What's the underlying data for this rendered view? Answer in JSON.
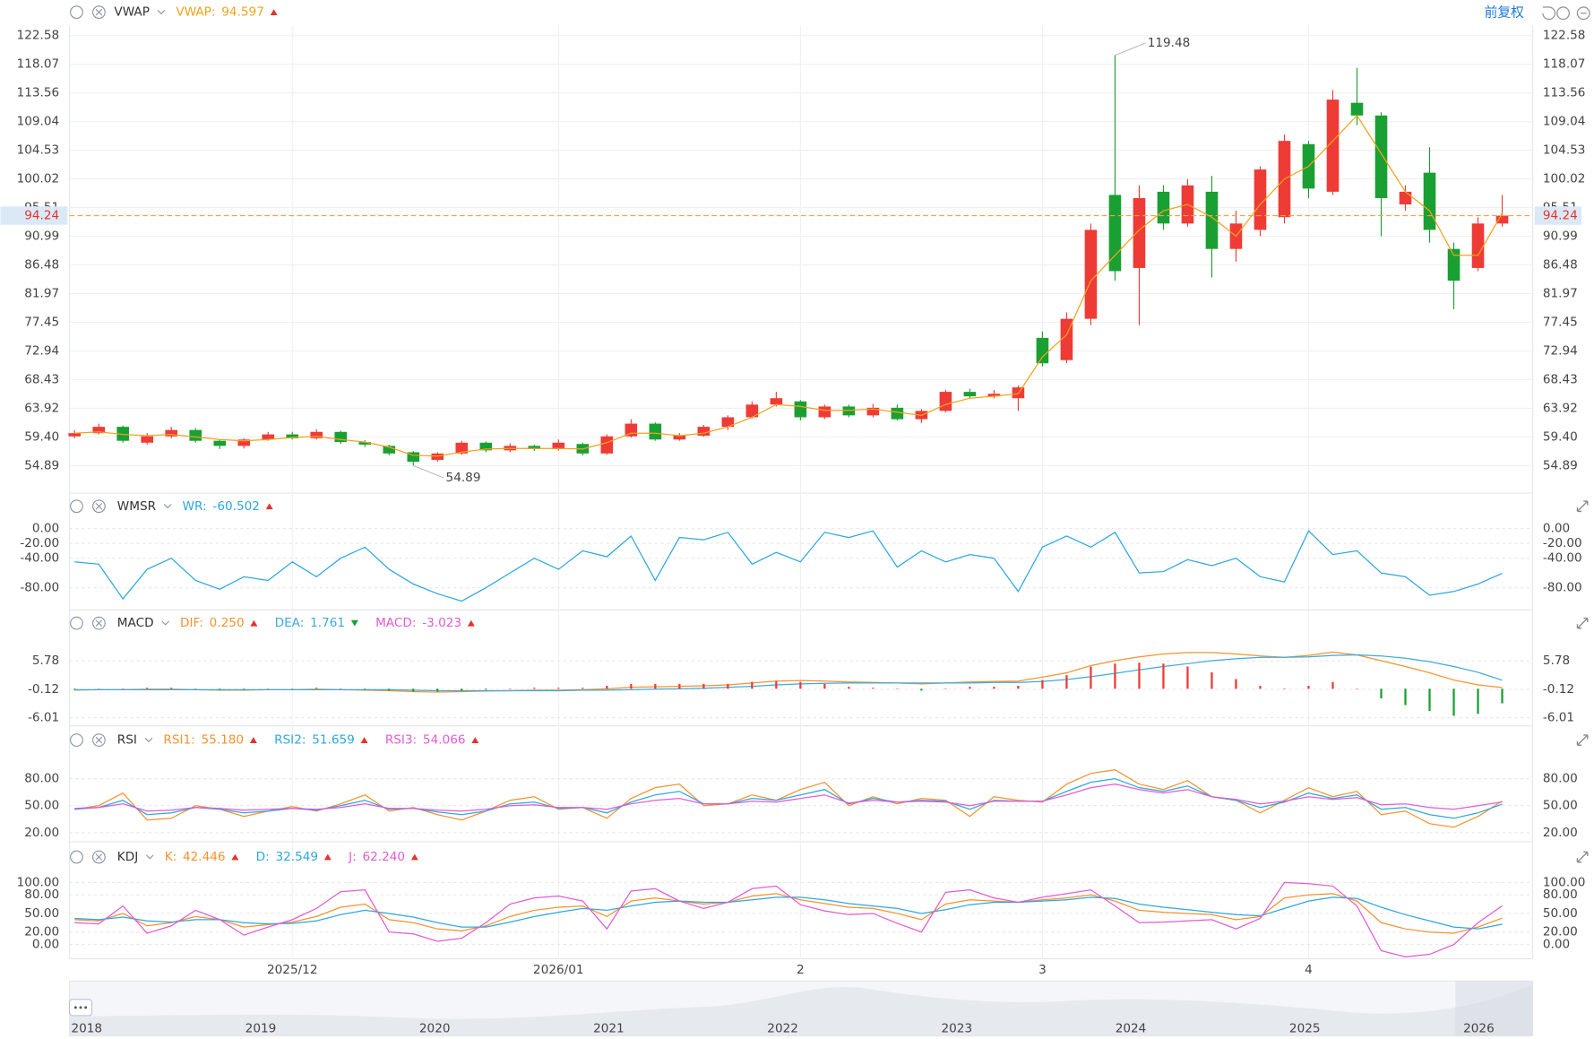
{
  "chart_data": [
    {
      "type": "candlestick",
      "title": "VWAP",
      "categories": [
        null,
        null,
        null,
        null,
        null,
        null,
        null,
        null,
        null,
        "2025/12",
        null,
        null,
        null,
        null,
        null,
        null,
        null,
        null,
        null,
        null,
        "2026/01",
        null,
        null,
        null,
        null,
        null,
        null,
        null,
        null,
        null,
        "2",
        null,
        null,
        null,
        null,
        null,
        null,
        null,
        null,
        null,
        "3",
        null,
        null,
        null,
        null,
        null,
        null,
        null,
        null,
        null,
        null,
        "4",
        null,
        null,
        null,
        null,
        null,
        null,
        null,
        null
      ],
      "open": [
        59.5,
        60,
        61,
        58.5,
        59.5,
        60.5,
        58.8,
        58,
        59,
        59.8,
        59.2,
        60.2,
        58.6,
        58,
        57,
        55.8,
        56.8,
        58.5,
        57.3,
        58,
        57.5,
        58.3,
        56.8,
        59.5,
        61.5,
        59,
        59.6,
        61,
        62.5,
        64.5,
        65,
        62.5,
        64.2,
        62.8,
        64,
        62.2,
        63.5,
        66.5,
        65.8,
        65.5,
        75,
        71.5,
        78,
        97.5,
        86,
        98,
        93,
        98,
        89,
        92,
        94,
        105.5,
        98,
        112,
        110,
        96,
        101,
        89,
        86,
        93
      ],
      "high": [
        60.5,
        61.5,
        61.2,
        60,
        61,
        60.8,
        59,
        59.2,
        60.2,
        60.2,
        60.6,
        60.4,
        58.9,
        58.2,
        57.2,
        57,
        58.8,
        58.7,
        58.4,
        58.2,
        59,
        58.5,
        59.8,
        62.2,
        61.7,
        60,
        61.3,
        62.8,
        65,
        66.5,
        65.2,
        64.5,
        64.5,
        64.6,
        64.5,
        63.8,
        66.8,
        67,
        66.8,
        67.5,
        76,
        79,
        93,
        119.48,
        99,
        99,
        100,
        100.5,
        95,
        102,
        107,
        106,
        114,
        117.5,
        110.5,
        99,
        105,
        90,
        94,
        97.5
      ],
      "low": [
        59.2,
        59.8,
        58.5,
        58.2,
        59.2,
        58.5,
        57.5,
        57.6,
        58.8,
        59,
        59,
        58.3,
        57.8,
        56.5,
        54.89,
        55.5,
        56.6,
        57,
        57,
        57.2,
        57.3,
        56.5,
        56.6,
        59.3,
        58.8,
        58.8,
        59.4,
        60.5,
        62.3,
        64.2,
        62,
        62.2,
        62.5,
        62.5,
        62,
        61.6,
        63.3,
        65.5,
        65.5,
        63.5,
        70.5,
        71,
        77,
        84,
        77,
        92,
        92.5,
        84.5,
        87,
        91,
        93,
        97,
        97.5,
        108.5,
        91,
        95,
        90,
        79.5,
        85.5,
        92.5
      ],
      "close": [
        60,
        61,
        58.8,
        59.5,
        60.5,
        58.8,
        58,
        59,
        59.8,
        59.2,
        60.2,
        58.6,
        58.2,
        56.8,
        55.5,
        56.8,
        58.5,
        57.3,
        58,
        57.5,
        58.5,
        56.8,
        59.5,
        61.5,
        59,
        59.6,
        61,
        62.5,
        64.5,
        65.5,
        62.5,
        64.2,
        62.8,
        64,
        62.2,
        63.5,
        66.5,
        65.8,
        66.2,
        67.2,
        71,
        78,
        92,
        85.5,
        97,
        93,
        99,
        89,
        93,
        101.5,
        106,
        98.5,
        112.5,
        110,
        97,
        98,
        92,
        84,
        93,
        94.24
      ],
      "up_color": "#ee3b36",
      "down_color": "#1a9f33",
      "series": [
        {
          "name": "VWAP:",
          "readout": "94.597",
          "trend": "up",
          "color": "#f0a21c",
          "values": [
            60,
            60.2,
            59.8,
            59.6,
            59.8,
            59.4,
            59,
            58.8,
            59,
            59.3,
            59.5,
            59,
            58.6,
            57.8,
            56.5,
            56.4,
            57,
            57.5,
            57.6,
            57.6,
            57.6,
            57.5,
            58.5,
            60,
            60,
            59.6,
            60,
            61,
            62.5,
            64.5,
            64.2,
            63.6,
            63.6,
            63.8,
            63.3,
            62.8,
            64.5,
            65.5,
            65.8,
            66.2,
            72,
            75.5,
            84,
            88,
            92,
            95,
            96,
            94,
            91,
            96,
            100,
            102,
            106,
            110,
            104,
            98,
            95,
            88,
            88,
            94.6
          ]
        }
      ],
      "last_price": {
        "value": 94.24,
        "label": "94.24",
        "color": "#f5a04a"
      },
      "annotations": [
        {
          "value": 119.48
        },
        {
          "value": 54.89
        }
      ],
      "ylim": [
        50.57,
        124.18
      ],
      "yticks": [
        122.58,
        118.07,
        113.56,
        109.04,
        104.53,
        100.02,
        95.51,
        90.99,
        86.48,
        81.97,
        77.45,
        72.94,
        68.43,
        63.92,
        {
          "value": 59.4,
          "label": "59.40"
        },
        54.89
      ],
      "grid": true
    },
    {
      "type": "line",
      "title": "WMSR",
      "series": [
        {
          "name": "WR:",
          "readout": "-60.502",
          "trend": "up",
          "color": "#2ea7e0",
          "values": [
            -45,
            -48,
            -95,
            -55,
            -40,
            -70,
            -82,
            -65,
            -70,
            -45,
            -65,
            -40,
            -25,
            -55,
            -75,
            -88,
            -98,
            -80,
            -60,
            -40,
            -55,
            -30,
            -38,
            -10,
            -70,
            -12,
            -15,
            -5,
            -48,
            -32,
            -45,
            -5,
            -12,
            -3,
            -52,
            -30,
            -45,
            -35,
            -40,
            -85,
            -25,
            -10,
            -25,
            -5,
            -60,
            -58,
            -42,
            -50,
            -40,
            -65,
            -72,
            -3,
            -35,
            -30,
            -60,
            -65,
            -90,
            -85,
            -75,
            -60.5
          ]
        }
      ],
      "ylim": [
        -110,
        11
      ],
      "yticks": [
        {
          "value": 0,
          "label": "0.00"
        },
        {
          "value": -20,
          "label": "-20.00"
        },
        {
          "value": -40,
          "label": "-40.00"
        },
        {
          "value": -80,
          "label": "-80.00"
        }
      ],
      "grid": true
    },
    {
      "type": "macd",
      "title": "MACD",
      "series": [
        {
          "name": "DIF:",
          "readout": "0.250",
          "trend": "up",
          "color": "#f5922f",
          "kind": "line",
          "values": [
            -0.3,
            -0.2,
            -0.2,
            -0.1,
            -0.1,
            -0.2,
            -0.3,
            -0.3,
            -0.2,
            -0.2,
            -0.1,
            -0.2,
            -0.3,
            -0.4,
            -0.6,
            -0.7,
            -0.6,
            -0.5,
            -0.4,
            -0.3,
            -0.3,
            -0.2,
            0.0,
            0.3,
            0.4,
            0.5,
            0.6,
            0.8,
            1.2,
            1.6,
            1.7,
            1.6,
            1.4,
            1.3,
            1.2,
            1.0,
            1.2,
            1.4,
            1.5,
            1.6,
            2.4,
            3.3,
            4.8,
            5.8,
            6.6,
            7.2,
            7.5,
            7.5,
            7.2,
            6.8,
            6.5,
            6.9,
            7.6,
            7.0,
            5.8,
            4.6,
            3.3,
            1.8,
            0.8,
            0.25
          ]
        },
        {
          "name": "DEA:",
          "readout": "1.761",
          "trend": "down",
          "color": "#3eaadc",
          "kind": "line",
          "values": [
            -0.2,
            -0.2,
            -0.2,
            -0.2,
            -0.2,
            -0.2,
            -0.2,
            -0.2,
            -0.2,
            -0.2,
            -0.2,
            -0.2,
            -0.2,
            -0.2,
            -0.3,
            -0.4,
            -0.4,
            -0.4,
            -0.4,
            -0.4,
            -0.4,
            -0.3,
            -0.3,
            -0.2,
            -0.1,
            0.0,
            0.1,
            0.3,
            0.5,
            0.8,
            1.0,
            1.1,
            1.2,
            1.2,
            1.2,
            1.2,
            1.2,
            1.2,
            1.3,
            1.3,
            1.5,
            1.9,
            2.5,
            3.2,
            3.9,
            4.6,
            5.2,
            5.8,
            6.2,
            6.5,
            6.5,
            6.6,
            6.9,
            7.0,
            6.8,
            6.3,
            5.6,
            4.6,
            3.4,
            1.761
          ]
        },
        {
          "name": "MACD:",
          "readout": "-3.023",
          "trend": "up",
          "color": "#e35ad6",
          "kind": "bar",
          "values": [
            -0.2,
            0,
            0,
            0.2,
            0.2,
            0,
            -0.2,
            -0.2,
            0,
            0,
            0.2,
            0,
            -0.2,
            -0.4,
            -0.6,
            -0.6,
            -0.4,
            -0.2,
            0,
            0.2,
            0.2,
            0.2,
            0.6,
            1.0,
            1.0,
            1.0,
            1.0,
            1.0,
            1.4,
            1.6,
            1.4,
            1.0,
            0.4,
            0.2,
            0,
            -0.4,
            0,
            0.4,
            0.4,
            0.6,
            1.8,
            2.8,
            4.6,
            5.2,
            5.4,
            5.2,
            4.6,
            3.4,
            2.0,
            0.6,
            0,
            0.6,
            1.4,
            0,
            -2.0,
            -3.4,
            -4.6,
            -5.6,
            -5.2,
            -3.023
          ]
        }
      ],
      "up_color": "#ee3b36",
      "down_color": "#1a9f33",
      "ylim": [
        -7.69,
        10.41
      ],
      "yticks": [
        5.78,
        -0.12,
        -6.01
      ],
      "grid": true
    },
    {
      "type": "line",
      "title": "RSI",
      "series": [
        {
          "name": "RSI1:",
          "readout": "55.180",
          "trend": "up",
          "color": "#f5922f",
          "values": [
            46,
            50,
            64,
            34,
            36,
            50,
            46,
            38,
            44,
            49,
            44,
            52,
            62,
            44,
            48,
            40,
            34,
            44,
            56,
            60,
            46,
            48,
            36,
            58,
            70,
            74,
            50,
            52,
            62,
            56,
            68,
            76,
            50,
            60,
            52,
            58,
            56,
            38,
            60,
            56,
            54,
            74,
            86,
            90,
            74,
            68,
            78,
            60,
            56,
            42,
            56,
            70,
            60,
            66,
            40,
            44,
            30,
            26,
            38,
            55.18
          ]
        },
        {
          "name": "RSI2:",
          "readout": "51.659",
          "trend": "up",
          "color": "#2ea7e0",
          "values": [
            46,
            48,
            56,
            40,
            42,
            48,
            46,
            42,
            44,
            47,
            45,
            50,
            56,
            46,
            47,
            43,
            40,
            44,
            52,
            54,
            47,
            48,
            42,
            54,
            62,
            66,
            52,
            52,
            58,
            56,
            62,
            68,
            52,
            58,
            54,
            56,
            55,
            46,
            56,
            55,
            55,
            66,
            76,
            80,
            70,
            66,
            72,
            60,
            56,
            48,
            54,
            64,
            58,
            62,
            46,
            48,
            40,
            36,
            42,
            51.659
          ]
        },
        {
          "name": "RSI3:",
          "readout": "54.066",
          "trend": "up",
          "color": "#e35ad6",
          "values": [
            47,
            48,
            52,
            44,
            45,
            48,
            47,
            45,
            46,
            47,
            46,
            48,
            52,
            47,
            47,
            45,
            44,
            46,
            50,
            51,
            48,
            48,
            46,
            52,
            56,
            58,
            52,
            52,
            55,
            54,
            58,
            62,
            53,
            56,
            54,
            55,
            54,
            50,
            55,
            55,
            55,
            62,
            70,
            74,
            68,
            64,
            68,
            60,
            57,
            52,
            55,
            60,
            57,
            59,
            51,
            52,
            48,
            46,
            50,
            54.066
          ]
        }
      ],
      "ylim": [
        9.8,
        107.2
      ],
      "yticks": [
        {
          "value": 80,
          "label": "80.00"
        },
        {
          "value": 50,
          "label": "50.00"
        },
        {
          "value": 20,
          "label": "20.00"
        }
      ],
      "grid": true
    },
    {
      "type": "line",
      "title": "KDJ",
      "series": [
        {
          "name": "K:",
          "readout": "42.446",
          "trend": "up",
          "color": "#f5922f",
          "values": [
            40,
            38,
            50,
            30,
            35,
            45,
            40,
            28,
            32,
            36,
            45,
            60,
            65,
            40,
            35,
            25,
            22,
            30,
            45,
            55,
            60,
            62,
            45,
            70,
            75,
            70,
            65,
            68,
            78,
            82,
            72,
            66,
            60,
            58,
            50,
            40,
            65,
            72,
            70,
            68,
            72,
            75,
            80,
            70,
            55,
            52,
            50,
            48,
            40,
            45,
            75,
            80,
            82,
            70,
            35,
            25,
            20,
            18,
            28,
            42.446
          ]
        },
        {
          "name": "D:",
          "readout": "32.549",
          "trend": "up",
          "color": "#2ea7e0",
          "values": [
            42,
            40,
            44,
            38,
            36,
            40,
            40,
            35,
            33,
            34,
            38,
            48,
            55,
            50,
            44,
            35,
            28,
            28,
            36,
            45,
            52,
            58,
            55,
            62,
            68,
            70,
            68,
            68,
            72,
            76,
            76,
            72,
            66,
            62,
            58,
            50,
            56,
            64,
            68,
            68,
            70,
            72,
            76,
            74,
            65,
            60,
            56,
            52,
            48,
            46,
            58,
            70,
            76,
            74,
            60,
            48,
            38,
            28,
            25,
            32.549
          ]
        },
        {
          "name": "J:",
          "readout": "62.240",
          "trend": "up",
          "color": "#e35ad6",
          "values": [
            35,
            33,
            62,
            18,
            30,
            55,
            40,
            15,
            28,
            40,
            58,
            85,
            88,
            20,
            17,
            5,
            10,
            35,
            65,
            75,
            78,
            70,
            25,
            86,
            90,
            70,
            58,
            68,
            90,
            94,
            64,
            54,
            48,
            50,
            34,
            20,
            84,
            88,
            75,
            68,
            76,
            82,
            88,
            62,
            35,
            36,
            38,
            40,
            25,
            42,
            100,
            98,
            94,
            62,
            -10,
            -20,
            -16,
            0,
            35,
            62.24
          ]
        }
      ],
      "ylim": [
        -23,
        118
      ],
      "yticks": [
        {
          "value": 100,
          "label": "100.00"
        },
        {
          "value": 80,
          "label": "80.00"
        },
        {
          "value": 50,
          "label": "50.00"
        },
        {
          "value": 20,
          "label": "20.00"
        },
        {
          "value": 0,
          "label": "0.00"
        }
      ],
      "grid": true
    }
  ],
  "toolbar": {
    "adjust": "前复权"
  },
  "navigator": {
    "labels": [
      "2018",
      "2019",
      "2020",
      "2021",
      "2022",
      "2023",
      "2024",
      "2025",
      "2026"
    ]
  }
}
